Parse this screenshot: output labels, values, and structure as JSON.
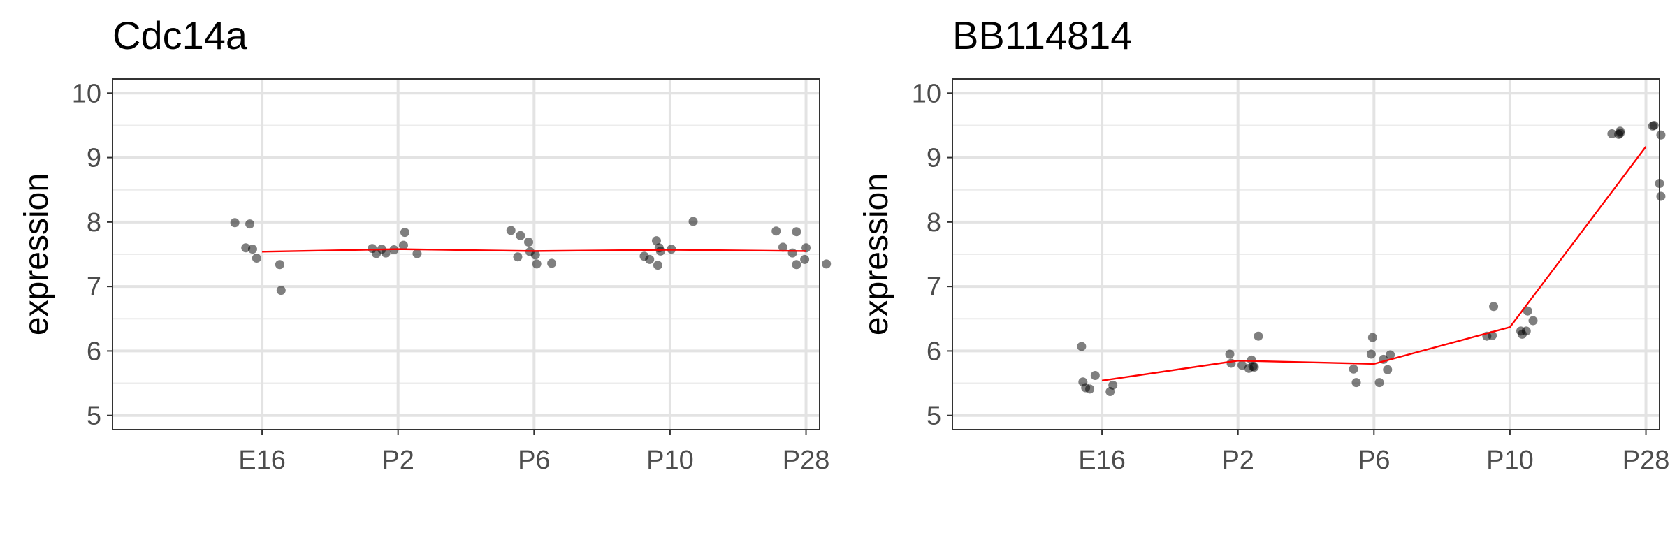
{
  "chart_data": [
    {
      "type": "scatter",
      "title": "Cdc14a",
      "xlabel": "",
      "ylabel": "expression",
      "categories": [
        "E16",
        "P2",
        "P6",
        "P10",
        "P28"
      ],
      "yticks": [
        5,
        6,
        7,
        8,
        9,
        10
      ],
      "ylim": [
        4.78,
        10.22
      ],
      "grid": true,
      "mean_line_color": "#ff0000",
      "point_color": "#000000",
      "means": [
        7.54,
        7.58,
        7.55,
        7.57,
        7.55
      ],
      "points": [
        [
          [
            -0.2,
            7.99
          ],
          [
            -0.09,
            7.97
          ],
          [
            -0.12,
            7.6
          ],
          [
            -0.07,
            7.58
          ],
          [
            -0.04,
            7.44
          ],
          [
            0.13,
            7.34
          ],
          [
            0.14,
            6.94
          ]
        ],
        [
          [
            -0.19,
            7.59
          ],
          [
            -0.16,
            7.51
          ],
          [
            -0.12,
            7.58
          ],
          [
            -0.09,
            7.52
          ],
          [
            -0.03,
            7.57
          ],
          [
            0.04,
            7.64
          ],
          [
            0.05,
            7.84
          ],
          [
            0.14,
            7.51
          ]
        ],
        [
          [
            -0.17,
            7.87
          ],
          [
            -0.1,
            7.79
          ],
          [
            -0.12,
            7.46
          ],
          [
            -0.04,
            7.69
          ],
          [
            -0.03,
            7.54
          ],
          [
            0.01,
            7.49
          ],
          [
            0.02,
            7.35
          ],
          [
            0.13,
            7.36
          ]
        ],
        [
          [
            -0.19,
            7.47
          ],
          [
            -0.15,
            7.42
          ],
          [
            -0.1,
            7.71
          ],
          [
            -0.09,
            7.33
          ],
          [
            -0.08,
            7.6
          ],
          [
            -0.07,
            7.55
          ],
          [
            0.01,
            7.58
          ],
          [
            0.17,
            8.01
          ]
        ],
        [
          [
            -0.22,
            7.86
          ],
          [
            -0.17,
            7.61
          ],
          [
            -0.1,
            7.52
          ],
          [
            -0.07,
            7.34
          ],
          [
            -0.07,
            7.85
          ],
          [
            -0.01,
            7.42
          ],
          [
            0.0,
            7.6
          ],
          [
            0.15,
            7.35
          ]
        ]
      ]
    },
    {
      "type": "scatter",
      "title": "BB114814",
      "xlabel": "",
      "ylabel": "expression",
      "categories": [
        "E16",
        "P2",
        "P6",
        "P10",
        "P28"
      ],
      "yticks": [
        5,
        6,
        7,
        8,
        9,
        10
      ],
      "ylim": [
        4.78,
        10.22
      ],
      "grid": true,
      "mean_line_color": "#ff0000",
      "point_color": "#000000",
      "means": [
        5.54,
        5.85,
        5.8,
        6.37,
        9.17
      ],
      "points": [
        [
          [
            -0.15,
            6.07
          ],
          [
            -0.14,
            5.52
          ],
          [
            -0.12,
            5.43
          ],
          [
            -0.09,
            5.41
          ],
          [
            -0.05,
            5.62
          ],
          [
            0.06,
            5.37
          ],
          [
            0.08,
            5.47
          ]
        ],
        [
          [
            -0.06,
            5.95
          ],
          [
            -0.05,
            5.81
          ],
          [
            0.03,
            5.78
          ],
          [
            0.08,
            5.73
          ],
          [
            0.1,
            5.86
          ],
          [
            0.11,
            5.76
          ],
          [
            0.12,
            5.75
          ],
          [
            0.15,
            6.23
          ]
        ],
        [
          [
            -0.15,
            5.72
          ],
          [
            -0.13,
            5.51
          ],
          [
            -0.02,
            5.95
          ],
          [
            -0.01,
            6.21
          ],
          [
            0.04,
            5.51
          ],
          [
            0.07,
            5.87
          ],
          [
            0.1,
            5.71
          ],
          [
            0.12,
            5.94
          ]
        ],
        [
          [
            -0.17,
            6.23
          ],
          [
            -0.13,
            6.24
          ],
          [
            -0.12,
            6.69
          ],
          [
            0.08,
            6.31
          ],
          [
            0.09,
            6.26
          ],
          [
            0.12,
            6.31
          ],
          [
            0.13,
            6.62
          ],
          [
            0.17,
            6.47
          ]
        ],
        [
          [
            -0.25,
            9.37
          ],
          [
            -0.2,
            9.36
          ],
          [
            -0.19,
            9.41
          ],
          [
            -0.19,
            9.38
          ],
          [
            0.05,
            9.49
          ],
          [
            0.06,
            9.5
          ],
          [
            0.1,
            8.6
          ],
          [
            0.11,
            9.35
          ],
          [
            0.11,
            8.4
          ]
        ]
      ]
    }
  ]
}
